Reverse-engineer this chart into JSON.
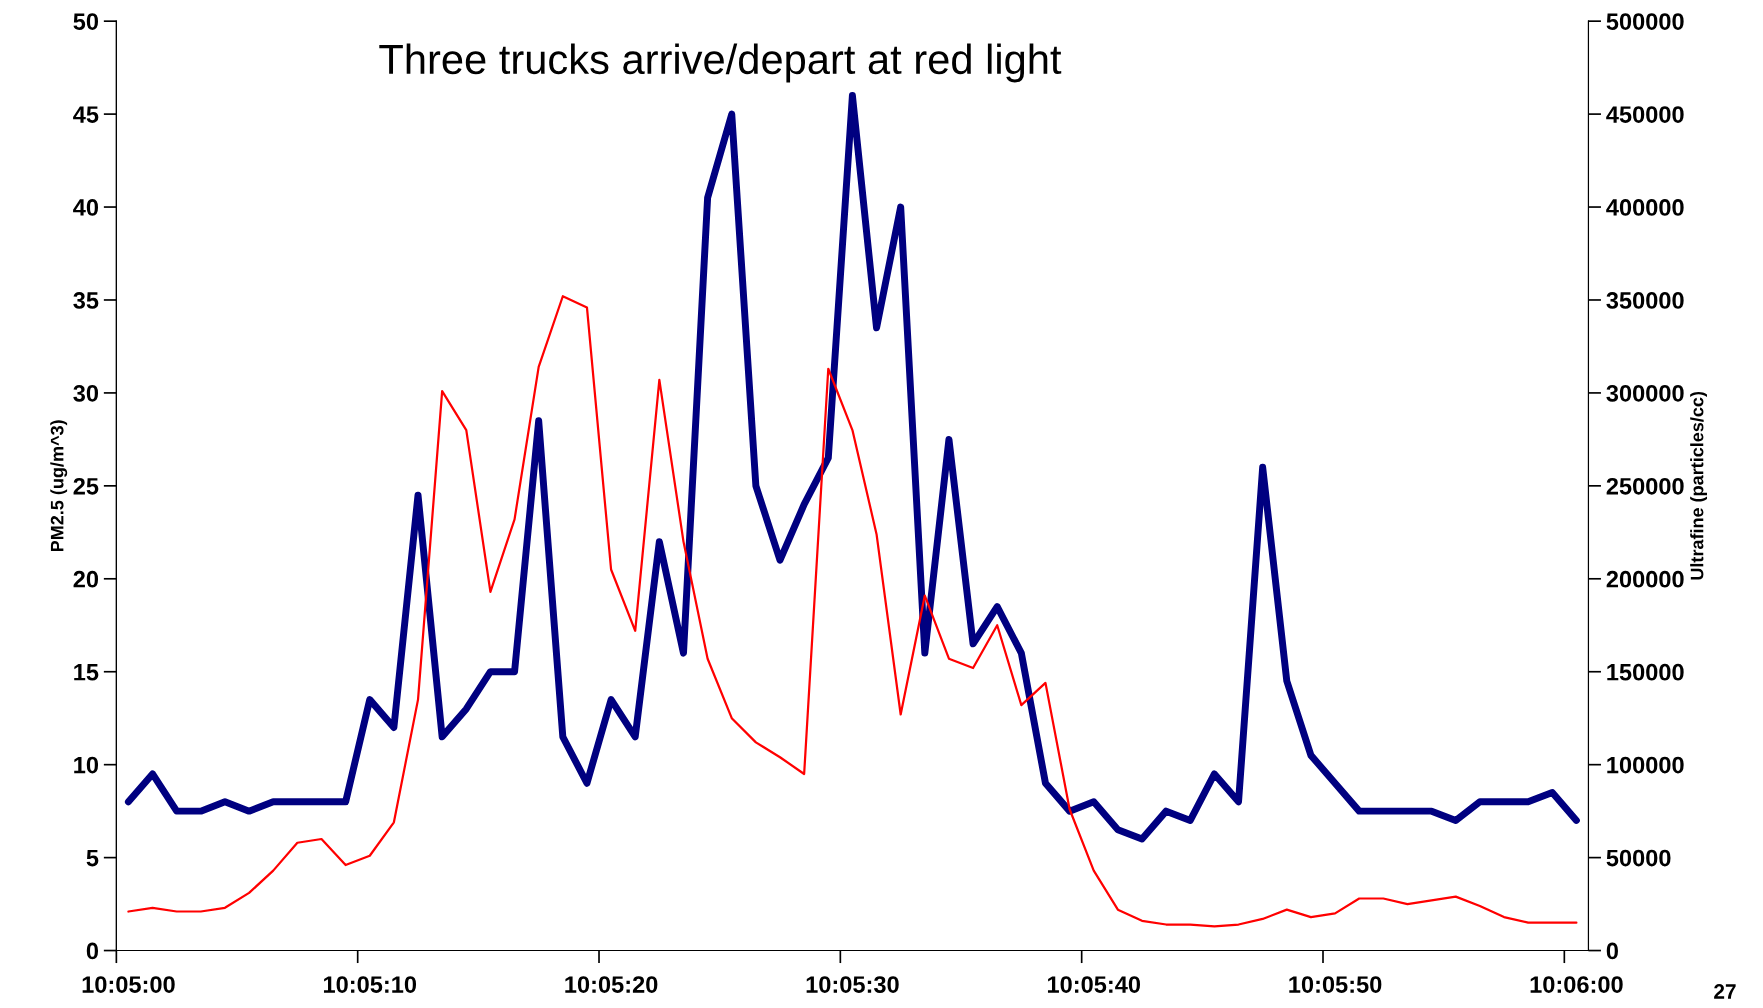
{
  "chart_data": {
    "type": "line",
    "title": "Three trucks arrive/depart at red light",
    "categories": [
      "10:05:00",
      null,
      null,
      null,
      null,
      null,
      null,
      null,
      null,
      null,
      "10:05:10",
      null,
      null,
      null,
      null,
      null,
      null,
      null,
      null,
      null,
      "10:05:20",
      null,
      null,
      null,
      null,
      null,
      null,
      null,
      null,
      null,
      "10:05:30",
      null,
      null,
      null,
      null,
      null,
      null,
      null,
      null,
      null,
      "10:05:40",
      null,
      null,
      null,
      null,
      null,
      null,
      null,
      null,
      null,
      "10:05:50",
      null,
      null,
      null,
      null,
      null,
      null,
      null,
      null,
      null,
      "10:06:00"
    ],
    "ylabel": "PM2.5 (ug/m^3)",
    "y2label": "Ultrafine (particles/cc)",
    "ylim": [
      0,
      50
    ],
    "yticks": [
      0,
      5,
      10,
      15,
      20,
      25,
      30,
      35,
      40,
      45,
      50
    ],
    "y2lim": [
      0,
      500000
    ],
    "y2ticks": [
      0,
      50000,
      100000,
      150000,
      200000,
      250000,
      300000,
      350000,
      400000,
      450000,
      500000
    ],
    "grid": false,
    "legend": false,
    "marker": "none",
    "annotations": [
      "27"
    ],
    "series": [
      {
        "color": "#000080",
        "values": [
          8,
          9.5,
          7.5,
          7.5,
          8,
          7.5,
          8,
          8,
          8,
          8,
          13.5,
          12,
          24.5,
          11.5,
          13,
          15,
          15,
          28.5,
          11.5,
          9,
          13.5,
          11.5,
          22,
          16,
          40.5,
          45,
          25,
          21,
          24,
          26.5,
          46,
          33.5,
          40,
          16,
          27.5,
          16.5,
          18.5,
          16,
          9,
          7.5,
          8,
          6.5,
          6,
          7.5,
          7,
          9.5,
          8,
          26,
          14.5,
          10.5,
          9,
          7.5,
          7.5,
          7.5,
          7.5,
          7,
          8,
          8,
          8,
          8.5,
          7
        ]
      },
      {
        "color": "#ff0000",
        "axis": "y2",
        "values": [
          21000,
          23000,
          21000,
          21000,
          23000,
          31000,
          43000,
          58000,
          60000,
          46000,
          51000,
          69000,
          135000,
          301000,
          280000,
          193000,
          232000,
          314000,
          352000,
          346000,
          205000,
          172000,
          307000,
          220000,
          157000,
          125000,
          112000,
          104000,
          95000,
          313000,
          280000,
          224000,
          127000,
          191000,
          157000,
          152000,
          175000,
          132000,
          144000,
          76000,
          43000,
          22000,
          16000,
          14000,
          14000,
          13000,
          14000,
          17000,
          22000,
          18000,
          20000,
          28000,
          28000,
          25000,
          27000,
          29000,
          24000,
          18000,
          15000,
          15000,
          15000
        ]
      }
    ]
  }
}
